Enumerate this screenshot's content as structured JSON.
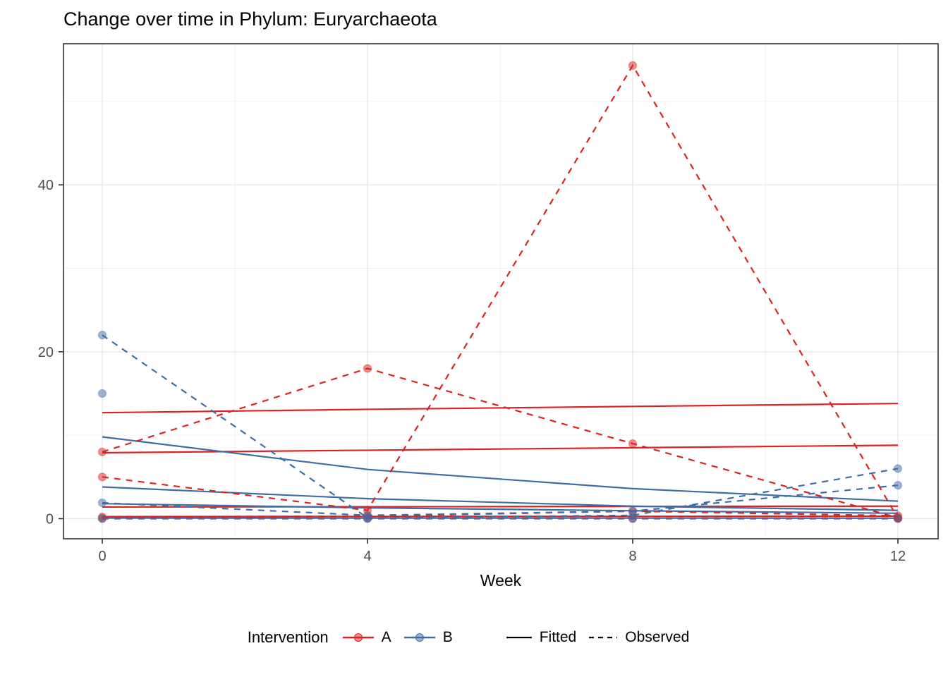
{
  "title": "Change over time in Phylum: Euryarchaeota",
  "chart_data": {
    "type": "line",
    "title": "Change over time in Phylum: Euryarchaeota",
    "xlabel": "Week",
    "ylabel": "",
    "x_ticks": [
      0,
      4,
      8,
      12
    ],
    "y_ticks": [
      0,
      20,
      40
    ],
    "xlim": [
      -0.6,
      12.6
    ],
    "ylim": [
      -2.4,
      56.9
    ],
    "grid": "on",
    "legend_position": "bottom",
    "colors": {
      "A": "#dd2222",
      "B": "#3e6ea5"
    },
    "series": [
      {
        "id": "fitted-a-1",
        "intervention": "A",
        "linetype": "Fitted",
        "weeks": [
          0,
          4,
          8,
          12
        ],
        "values": [
          12.7,
          13.1,
          13.45,
          13.8
        ]
      },
      {
        "id": "fitted-a-2",
        "intervention": "A",
        "linetype": "Fitted",
        "weeks": [
          0,
          4,
          8,
          12
        ],
        "values": [
          7.9,
          8.2,
          8.5,
          8.8
        ]
      },
      {
        "id": "fitted-a-3",
        "intervention": "A",
        "linetype": "Fitted",
        "weeks": [
          0,
          4,
          8,
          12
        ],
        "values": [
          1.4,
          1.43,
          1.47,
          1.5
        ]
      },
      {
        "id": "fitted-a-4",
        "intervention": "A",
        "linetype": "Fitted",
        "weeks": [
          0,
          4,
          8,
          12
        ],
        "values": [
          0.25,
          0.27,
          0.28,
          0.3
        ]
      },
      {
        "id": "fitted-b-1",
        "intervention": "B",
        "linetype": "Fitted",
        "weeks": [
          0,
          4,
          8,
          12
        ],
        "values": [
          9.8,
          5.9,
          3.6,
          2.1
        ]
      },
      {
        "id": "fitted-b-2",
        "intervention": "B",
        "linetype": "Fitted",
        "weeks": [
          0,
          4,
          8,
          12
        ],
        "values": [
          3.8,
          2.4,
          1.5,
          1.0
        ]
      },
      {
        "id": "fitted-b-3",
        "intervention": "B",
        "linetype": "Fitted",
        "weeks": [
          0,
          4,
          8,
          12
        ],
        "values": [
          1.8,
          1.3,
          0.95,
          0.65
        ]
      },
      {
        "id": "fitted-b-4",
        "intervention": "B",
        "linetype": "Fitted",
        "weeks": [
          0,
          4,
          8,
          12
        ],
        "values": [
          0.08,
          0.07,
          0.07,
          0.06
        ]
      },
      {
        "id": "observed-a-1",
        "intervention": "A",
        "linetype": "Observed",
        "weeks": [
          0,
          4,
          8,
          12
        ],
        "values": [
          8,
          18,
          9,
          0.1
        ]
      },
      {
        "id": "observed-a-2",
        "intervention": "A",
        "linetype": "Observed",
        "weeks": [
          0,
          4,
          8,
          12
        ],
        "values": [
          5,
          1,
          54.3,
          0.05
        ]
      },
      {
        "id": "observed-a-3",
        "intervention": "A",
        "linetype": "Observed",
        "weeks": [
          0,
          4,
          8,
          12
        ],
        "values": [
          0.2,
          0.3,
          0.9,
          0.35
        ]
      },
      {
        "id": "observed-a-4",
        "intervention": "A",
        "linetype": "Observed",
        "weeks": [
          0,
          4,
          8,
          12
        ],
        "values": [
          0.05,
          0.05,
          0.05,
          0.05
        ]
      },
      {
        "id": "observed-b-1",
        "intervention": "B",
        "linetype": "Observed",
        "weeks": [
          0,
          4,
          8,
          12
        ],
        "values": [
          22,
          0.1,
          0.4,
          6
        ]
      },
      {
        "id": "observed-b-2",
        "intervention": "B",
        "linetype": "Observed",
        "weeks": [
          0,
          4,
          8,
          12
        ],
        "values": [
          15,
          null,
          null,
          null
        ]
      },
      {
        "id": "observed-b-3",
        "intervention": "B",
        "linetype": "Observed",
        "weeks": [
          0,
          4,
          8,
          12
        ],
        "values": [
          1.9,
          0.4,
          0.9,
          4
        ]
      },
      {
        "id": "observed-b-4",
        "intervention": "B",
        "linetype": "Observed",
        "weeks": [
          0,
          4,
          8,
          12
        ],
        "values": [
          0,
          0,
          0,
          0
        ]
      }
    ]
  },
  "legend": {
    "title": "Intervention",
    "items": [
      {
        "label": "A",
        "color": "#dd2222"
      },
      {
        "label": "B",
        "color": "#3e6ea5"
      }
    ],
    "linetype_items": [
      {
        "label": "Fitted",
        "dash": "solid"
      },
      {
        "label": "Observed",
        "dash": "dashed"
      }
    ]
  },
  "axis": {
    "x_label": "Week",
    "tick_color": "#4d4d4d"
  }
}
